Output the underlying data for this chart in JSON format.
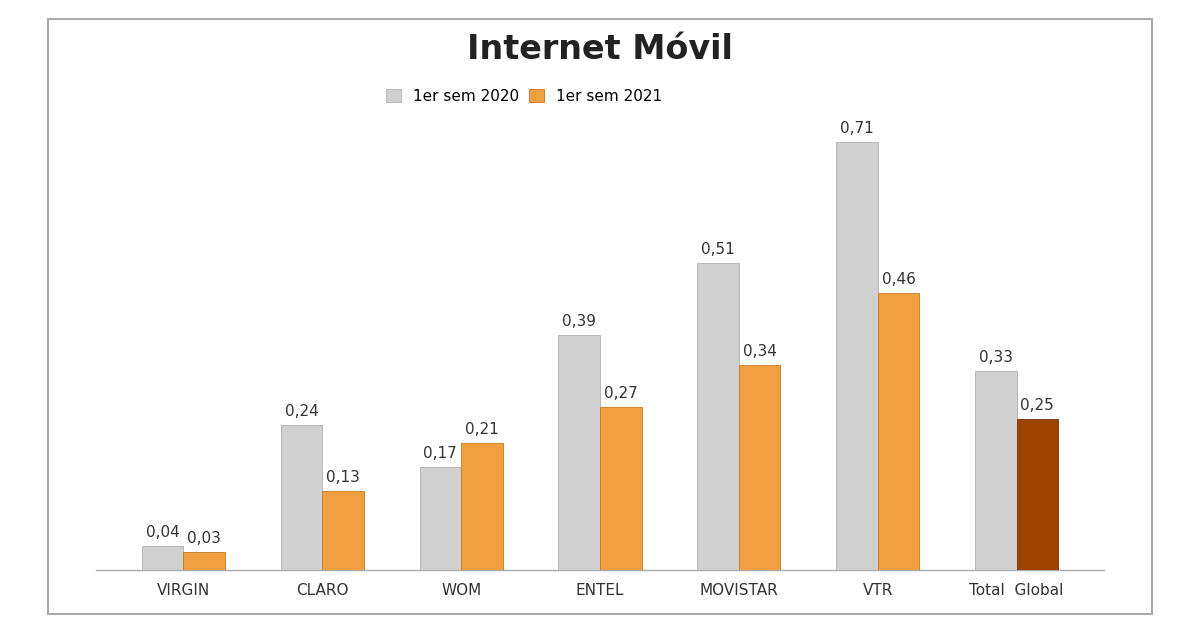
{
  "title": "Internet Móvil",
  "title_fontsize": 24,
  "categories": [
    "VIRGIN",
    "CLARO",
    "WOM",
    "ENTEL",
    "MOVISTAR",
    "VTR",
    "Total  Global"
  ],
  "values_2020": [
    0.04,
    0.24,
    0.17,
    0.39,
    0.51,
    0.71,
    0.33
  ],
  "values_2021": [
    0.03,
    0.13,
    0.21,
    0.27,
    0.34,
    0.46,
    0.25
  ],
  "color_2020": "#d0d0d0",
  "color_2021_default": "#f0a040",
  "color_2021_last": "#9b4400",
  "legend_label_2020": "1er sem 2020",
  "legend_label_2021": "1er sem 2021",
  "bar_width": 0.3,
  "ylim": [
    0,
    0.82
  ],
  "label_fontsize": 11,
  "tick_fontsize": 11,
  "legend_fontsize": 11,
  "bg_color": "#ffffff",
  "border_color": "#bbbbbb"
}
